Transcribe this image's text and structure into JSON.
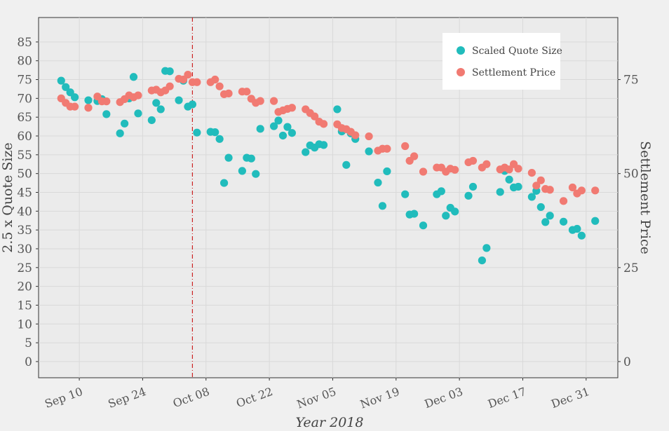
{
  "chart_data": {
    "type": "scatter",
    "xlabel": "Year 2018",
    "ylabel_left": "2.5 x Quote Size",
    "ylabel_right": "Settlement Price",
    "x_ticks": [
      "Sep 10",
      "Sep 24",
      "Oct 08",
      "Oct 22",
      "Nov 05",
      "Nov 19",
      "Dec 03",
      "Dec 17",
      "Dec 31"
    ],
    "x_tick_dates": [
      "2018-09-10",
      "2018-09-24",
      "2018-10-08",
      "2018-10-22",
      "2018-11-05",
      "2018-11-19",
      "2018-12-03",
      "2018-12-17",
      "2018-12-31"
    ],
    "x_range": [
      "2018-09-01",
      "2019-01-07"
    ],
    "y_left_ticks": [
      0,
      5,
      10,
      15,
      20,
      25,
      30,
      35,
      40,
      45,
      50,
      55,
      60,
      65,
      70,
      75,
      80,
      85
    ],
    "y_left_range": [
      -4.3,
      91.5
    ],
    "y_right_ticks": [
      0,
      25,
      50,
      75
    ],
    "y_right_range": [
      -4.3,
      91.5
    ],
    "event_line_date": "2018-10-05",
    "event_line_color": "#cc2222",
    "grid": true,
    "legend_position": "top-right",
    "series": [
      {
        "name": "Scaled Quote Size",
        "color": "#21bcbc",
        "axis": "left",
        "points": [
          [
            "2018-09-06",
            74.7
          ],
          [
            "2018-09-07",
            73.0
          ],
          [
            "2018-09-08",
            71.6
          ],
          [
            "2018-09-09",
            70.3
          ],
          [
            "2018-09-12",
            69.5
          ],
          [
            "2018-09-14",
            69.3
          ],
          [
            "2018-09-15",
            69.8
          ],
          [
            "2018-09-16",
            65.8
          ],
          [
            "2018-09-19",
            60.7
          ],
          [
            "2018-09-20",
            63.3
          ],
          [
            "2018-09-21",
            70.0
          ],
          [
            "2018-09-22",
            75.7
          ],
          [
            "2018-09-23",
            66.0
          ],
          [
            "2018-09-26",
            64.2
          ],
          [
            "2018-09-27",
            68.8
          ],
          [
            "2018-09-28",
            67.1
          ],
          [
            "2018-09-29",
            77.3
          ],
          [
            "2018-09-30",
            77.2
          ],
          [
            "2018-10-02",
            69.5
          ],
          [
            "2018-10-03",
            74.7
          ],
          [
            "2018-10-04",
            67.8
          ],
          [
            "2018-10-05",
            68.4
          ],
          [
            "2018-10-06",
            60.9
          ],
          [
            "2018-10-09",
            61.1
          ],
          [
            "2018-10-10",
            61.0
          ],
          [
            "2018-10-11",
            59.2
          ],
          [
            "2018-10-12",
            47.5
          ],
          [
            "2018-10-13",
            54.2
          ],
          [
            "2018-10-16",
            50.7
          ],
          [
            "2018-10-17",
            54.2
          ],
          [
            "2018-10-18",
            54.0
          ],
          [
            "2018-10-19",
            49.9
          ],
          [
            "2018-10-20",
            61.9
          ],
          [
            "2018-10-23",
            62.6
          ],
          [
            "2018-10-24",
            64.1
          ],
          [
            "2018-10-25",
            60.1
          ],
          [
            "2018-10-26",
            62.4
          ],
          [
            "2018-10-27",
            60.8
          ],
          [
            "2018-10-30",
            55.7
          ],
          [
            "2018-10-31",
            57.5
          ],
          [
            "2018-11-01",
            56.9
          ],
          [
            "2018-11-02",
            57.8
          ],
          [
            "2018-11-03",
            57.6
          ],
          [
            "2018-11-06",
            67.1
          ],
          [
            "2018-11-07",
            61.2
          ],
          [
            "2018-11-08",
            52.3
          ],
          [
            "2018-11-09",
            60.7
          ],
          [
            "2018-11-10",
            59.2
          ],
          [
            "2018-11-13",
            55.9
          ],
          [
            "2018-11-15",
            47.6
          ],
          [
            "2018-11-16",
            41.4
          ],
          [
            "2018-11-17",
            50.6
          ],
          [
            "2018-11-21",
            44.5
          ],
          [
            "2018-11-22",
            39.1
          ],
          [
            "2018-11-23",
            39.3
          ],
          [
            "2018-11-25",
            36.2
          ],
          [
            "2018-11-28",
            44.5
          ],
          [
            "2018-11-29",
            45.3
          ],
          [
            "2018-11-30",
            38.8
          ],
          [
            "2018-12-01",
            40.9
          ],
          [
            "2018-12-02",
            39.9
          ],
          [
            "2018-12-05",
            44.1
          ],
          [
            "2018-12-06",
            46.5
          ],
          [
            "2018-12-08",
            26.9
          ],
          [
            "2018-12-09",
            30.2
          ],
          [
            "2018-12-12",
            45.1
          ],
          [
            "2018-12-13",
            50.7
          ],
          [
            "2018-12-14",
            48.4
          ],
          [
            "2018-12-15",
            46.3
          ],
          [
            "2018-12-16",
            46.5
          ],
          [
            "2018-12-19",
            43.8
          ],
          [
            "2018-12-20",
            45.4
          ],
          [
            "2018-12-21",
            41.1
          ],
          [
            "2018-12-22",
            37.1
          ],
          [
            "2018-12-23",
            38.8
          ],
          [
            "2018-12-26",
            37.2
          ],
          [
            "2018-12-28",
            35.0
          ],
          [
            "2018-12-29",
            35.3
          ],
          [
            "2018-12-30",
            33.5
          ],
          [
            "2019-01-02",
            37.4
          ]
        ]
      },
      {
        "name": "Settlement Price",
        "color": "#f17a72",
        "axis": "right",
        "points": [
          [
            "2018-09-06",
            70.0
          ],
          [
            "2018-09-07",
            68.8
          ],
          [
            "2018-09-08",
            67.8
          ],
          [
            "2018-09-09",
            67.8
          ],
          [
            "2018-09-12",
            67.5
          ],
          [
            "2018-09-14",
            70.5
          ],
          [
            "2018-09-15",
            69.2
          ],
          [
            "2018-09-16",
            69.2
          ],
          [
            "2018-09-19",
            69.0
          ],
          [
            "2018-09-20",
            69.8
          ],
          [
            "2018-09-21",
            70.8
          ],
          [
            "2018-09-22",
            70.3
          ],
          [
            "2018-09-23",
            70.8
          ],
          [
            "2018-09-26",
            72.1
          ],
          [
            "2018-09-27",
            72.3
          ],
          [
            "2018-09-28",
            71.6
          ],
          [
            "2018-09-29",
            72.1
          ],
          [
            "2018-09-30",
            73.2
          ],
          [
            "2018-10-02",
            75.2
          ],
          [
            "2018-10-03",
            75.0
          ],
          [
            "2018-10-04",
            76.3
          ],
          [
            "2018-10-05",
            74.3
          ],
          [
            "2018-10-06",
            74.3
          ],
          [
            "2018-10-09",
            74.3
          ],
          [
            "2018-10-10",
            75.0
          ],
          [
            "2018-10-11",
            73.2
          ],
          [
            "2018-10-12",
            71.1
          ],
          [
            "2018-10-13",
            71.3
          ],
          [
            "2018-10-16",
            71.8
          ],
          [
            "2018-10-17",
            71.8
          ],
          [
            "2018-10-18",
            69.9
          ],
          [
            "2018-10-19",
            68.8
          ],
          [
            "2018-10-20",
            69.3
          ],
          [
            "2018-10-23",
            69.3
          ],
          [
            "2018-10-24",
            66.4
          ],
          [
            "2018-10-25",
            66.8
          ],
          [
            "2018-10-26",
            67.2
          ],
          [
            "2018-10-27",
            67.5
          ],
          [
            "2018-10-30",
            67.1
          ],
          [
            "2018-10-31",
            66.1
          ],
          [
            "2018-11-01",
            65.2
          ],
          [
            "2018-11-02",
            63.8
          ],
          [
            "2018-11-03",
            63.2
          ],
          [
            "2018-11-06",
            63.1
          ],
          [
            "2018-11-07",
            62.1
          ],
          [
            "2018-11-08",
            61.8
          ],
          [
            "2018-11-09",
            61.1
          ],
          [
            "2018-11-10",
            60.2
          ],
          [
            "2018-11-13",
            59.9
          ],
          [
            "2018-11-15",
            56.1
          ],
          [
            "2018-11-16",
            56.6
          ],
          [
            "2018-11-17",
            56.6
          ],
          [
            "2018-11-21",
            57.3
          ],
          [
            "2018-11-22",
            53.4
          ],
          [
            "2018-11-23",
            54.6
          ],
          [
            "2018-11-25",
            50.5
          ],
          [
            "2018-11-28",
            51.6
          ],
          [
            "2018-11-29",
            51.6
          ],
          [
            "2018-11-30",
            50.5
          ],
          [
            "2018-12-01",
            51.3
          ],
          [
            "2018-12-02",
            51.0
          ],
          [
            "2018-12-05",
            53.0
          ],
          [
            "2018-12-06",
            53.4
          ],
          [
            "2018-12-08",
            51.6
          ],
          [
            "2018-12-09",
            52.5
          ],
          [
            "2018-12-12",
            51.1
          ],
          [
            "2018-12-13",
            51.6
          ],
          [
            "2018-12-14",
            51.1
          ],
          [
            "2018-12-15",
            52.5
          ],
          [
            "2018-12-16",
            51.3
          ],
          [
            "2018-12-19",
            50.2
          ],
          [
            "2018-12-20",
            46.8
          ],
          [
            "2018-12-21",
            48.2
          ],
          [
            "2018-12-22",
            45.9
          ],
          [
            "2018-12-23",
            45.7
          ],
          [
            "2018-12-26",
            42.7
          ],
          [
            "2018-12-28",
            46.3
          ],
          [
            "2018-12-29",
            44.7
          ],
          [
            "2018-12-30",
            45.5
          ],
          [
            "2019-01-02",
            45.5
          ]
        ]
      }
    ]
  }
}
